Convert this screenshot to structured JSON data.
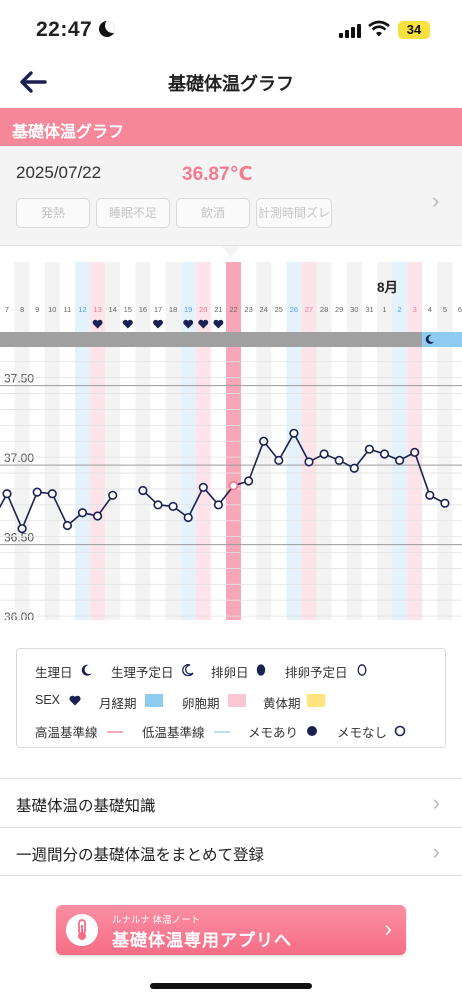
{
  "status": {
    "time": "22:47",
    "battery": "34"
  },
  "nav": {
    "title": "基礎体温グラフ"
  },
  "section": {
    "title": "基礎体温グラフ"
  },
  "info": {
    "date": "2025/07/22",
    "temperature": "36.87℃",
    "tags": [
      "発熱",
      "睡眠不足",
      "飲酒",
      "計測時間ズレ"
    ]
  },
  "chart_data": {
    "type": "line",
    "month_label": "8月",
    "days": [
      "7",
      "8",
      "9",
      "10",
      "11",
      "12",
      "13",
      "14",
      "15",
      "16",
      "17",
      "18",
      "19",
      "20",
      "21",
      "22",
      "23",
      "24",
      "25",
      "26",
      "27",
      "28",
      "29",
      "30",
      "31",
      "1",
      "2",
      "3",
      "4",
      "5",
      "6"
    ],
    "day_colors": {
      "blue": [
        "12",
        "19",
        "26",
        "2"
      ],
      "pink": [
        "13",
        "20",
        "27",
        "3"
      ]
    },
    "y_ticks": [
      "37.50",
      "37.00",
      "36.50",
      "36.00"
    ],
    "ylim": [
      35.95,
      37.68
    ],
    "temperatures": [
      36.82,
      36.6,
      36.83,
      36.82,
      36.62,
      36.7,
      36.68,
      36.81,
      null,
      36.84,
      36.75,
      36.74,
      36.67,
      36.86,
      36.75,
      36.87,
      36.9,
      37.15,
      37.03,
      37.2,
      37.02,
      37.07,
      37.03,
      36.98,
      37.1,
      37.07,
      37.03,
      37.08,
      36.81,
      36.76,
      null
    ],
    "highlight_day": "22",
    "sex_days": [
      "13",
      "15",
      "17",
      "19",
      "20",
      "21"
    ],
    "period_bar_until": "3",
    "high_baseline": 36.87,
    "low_baseline": 36.59,
    "colors": {
      "line": "#1b2150",
      "highlight": "#f7a7b8",
      "pink_band": "#fde3ea",
      "blue_band": "#e4f2fb",
      "grey_band": "#f3f3f3",
      "period_bar": "#a0a0a0",
      "marker_bar": "#8ecbf0"
    }
  },
  "legend": {
    "period_day": "生理日",
    "period_forecast": "生理予定日",
    "ovulation_day": "排卵日",
    "ovulation_forecast": "排卵予定日",
    "sex": "SEX",
    "menstrual_phase": "月経期",
    "follicular_phase": "卵胞期",
    "luteal_phase": "黄体期",
    "high_baseline": "高温基準線",
    "low_baseline": "低温基準線",
    "memo_yes": "メモあり",
    "memo_no": "メモなし",
    "colors": {
      "menstrual": "#8ecbf0",
      "follicular": "#fbc6d3",
      "luteal": "#fde47d",
      "high_line": "#f4a9b6",
      "low_line": "#b8e0f3"
    }
  },
  "menu": [
    {
      "label": "基礎体温の基礎知識"
    },
    {
      "label": "一週間分の基礎体温をまとめて登録"
    }
  ],
  "banner": {
    "small": "ルナルナ 体温ノート",
    "main": "基礎体温専用アプリへ"
  }
}
